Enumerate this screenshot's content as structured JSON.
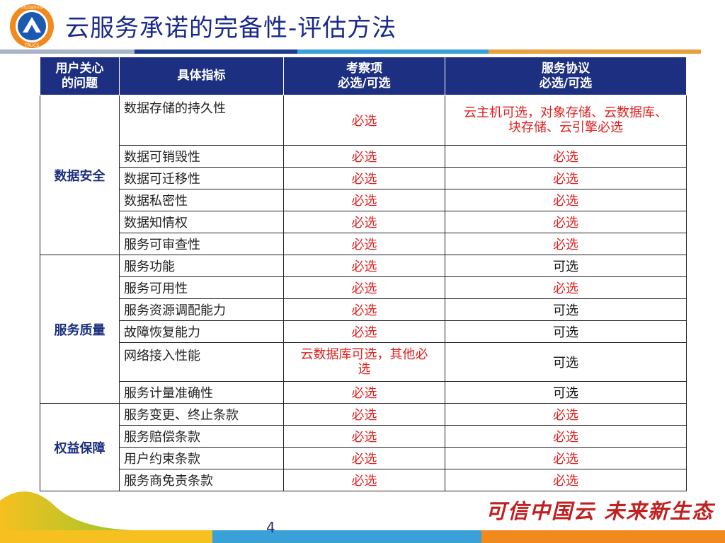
{
  "title": "云服务承诺的完备性-评估方法",
  "logo": {
    "ring_text": "可信云服务认证",
    "emblem_text": "TRUCS"
  },
  "table": {
    "headers": {
      "concern_line1": "用户关心",
      "concern_line2": "的问题",
      "indicator": "具体指标",
      "review_line1": "考察项",
      "review_line2": "必选/可选",
      "agreement_line1": "服务协议",
      "agreement_line2": "必选/可选"
    },
    "groups": [
      {
        "category": "数据安全",
        "rows": [
          {
            "indicator": "数据存储的持久性",
            "review": "必选",
            "agreement_line1": "云主机可选，对象存储、云数据库、",
            "agreement_line2": "块存储、云引擎必选"
          },
          {
            "indicator": "数据可销毁性",
            "review": "必选",
            "agreement": "必选"
          },
          {
            "indicator": "数据可迁移性",
            "review": "必选",
            "agreement": "必选"
          },
          {
            "indicator": "数据私密性",
            "review": "必选",
            "agreement": "必选"
          },
          {
            "indicator": "数据知情权",
            "review": "必选",
            "agreement": "必选"
          },
          {
            "indicator": "服务可审查性",
            "review": "必选",
            "agreement": "必选"
          }
        ]
      },
      {
        "category": "服务质量",
        "rows": [
          {
            "indicator": "服务功能",
            "review": "必选",
            "agreement": "可选"
          },
          {
            "indicator": "服务可用性",
            "review": "必选",
            "agreement": "必选"
          },
          {
            "indicator": "服务资源调配能力",
            "review": "必选",
            "agreement": "可选"
          },
          {
            "indicator": "故障恢复能力",
            "review": "必选",
            "agreement": "可选"
          },
          {
            "indicator": "网络接入性能",
            "review_line1": "云数据库可选，其他必",
            "review_line2": "选",
            "agreement": "可选"
          },
          {
            "indicator": "服务计量准确性",
            "review": "必选",
            "agreement": "可选"
          }
        ]
      },
      {
        "category": "权益保障",
        "rows": [
          {
            "indicator": "服务变更、终止条款",
            "review": "必选",
            "agreement": "必选"
          },
          {
            "indicator": "服务赔偿条款",
            "review": "必选",
            "agreement": "必选"
          },
          {
            "indicator": "用户约束条款",
            "review": "必选",
            "agreement": "必选"
          },
          {
            "indicator": "服务商免责条款",
            "review": "必选",
            "agreement": "必选"
          }
        ]
      }
    ]
  },
  "footer": {
    "page_number": "4",
    "slogan": "可信中国云  未来新生态"
  },
  "colors": {
    "header_bg": "#1c2f80",
    "title": "#1a2a8a",
    "required_text": "#e02020",
    "category_text": "#1c2f80"
  }
}
